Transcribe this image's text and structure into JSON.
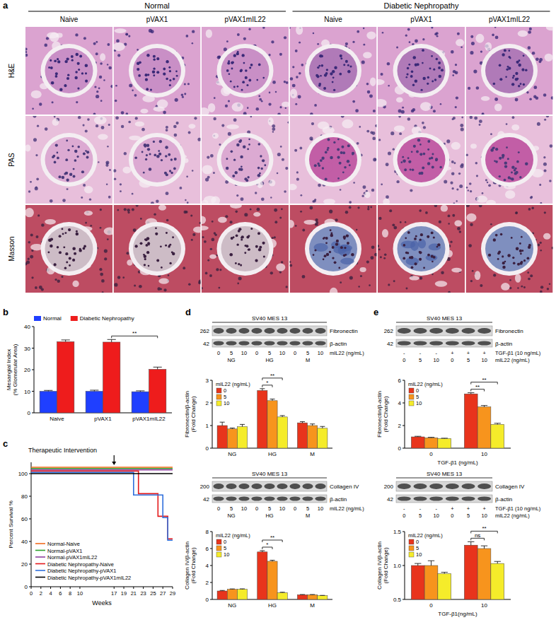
{
  "panel_labels": [
    "a",
    "b",
    "c",
    "d",
    "e"
  ],
  "panel_a": {
    "group_headers": [
      "Normal",
      "Diabetic Nephropathy"
    ],
    "columns": [
      "Naive",
      "pVAX1",
      "pVAX1mIL22",
      "Naive",
      "pVAX1",
      "pVAX1mIL22"
    ],
    "rows": [
      "H&E",
      "PAS",
      "Masson"
    ]
  },
  "blots": [
    {
      "title": "SV40 MES 13",
      "rows": [
        {
          "label": "Fibronectin",
          "mw": 262
        },
        {
          "label": "β-actin",
          "mw": 42
        }
      ],
      "lane_rows": [
        {
          "label": "mIL22 (ng/mL)",
          "lanes": [
            "0",
            "5",
            "10",
            "0",
            "5",
            "10",
            "0",
            "5",
            "10"
          ]
        }
      ],
      "groups": [
        "NG",
        "HG",
        "M"
      ]
    },
    {
      "title": "SV40 MES 13",
      "rows": [
        {
          "label": "Collagen IV",
          "mw": 200
        },
        {
          "label": "β-actin",
          "mw": 42
        }
      ],
      "lane_rows": [
        {
          "label": "mIL22 (ng/mL)",
          "lanes": [
            "0",
            "5",
            "10",
            "0",
            "5",
            "10",
            "0",
            "5",
            "10"
          ]
        }
      ],
      "groups": [
        "NG",
        "HG",
        "M"
      ]
    },
    {
      "title": "SV40 MES 13",
      "rows": [
        {
          "label": "Fibronectin",
          "mw": 262
        },
        {
          "label": "β-actin",
          "mw": 42
        }
      ],
      "lane_rows": [
        {
          "label": "TGF-β1 (10 ng/mL)",
          "lanes": [
            "-",
            "-",
            "-",
            "+",
            "+",
            "+"
          ]
        },
        {
          "label": "mIL22 (ng/mL)",
          "lanes": [
            "0",
            "5",
            "10",
            "0",
            "5",
            "10"
          ]
        }
      ]
    },
    {
      "title": "SV40 MES 13",
      "rows": [
        {
          "label": "Collagen IV",
          "mw": 200
        },
        {
          "label": "β-actin",
          "mw": 42
        }
      ],
      "lane_rows": [
        {
          "label": "TGF-β1 (10 ng/mL)",
          "lanes": [
            "-",
            "-",
            "-",
            "+",
            "+",
            "+"
          ]
        },
        {
          "label": "mIL22 (ng/mL)",
          "lanes": [
            "0",
            "5",
            "10",
            "0",
            "5",
            "10"
          ]
        }
      ]
    }
  ],
  "chart_data": [
    {
      "type": "bar",
      "categories": [
        "Naive",
        "pVAX1",
        "pVAX1mIL22"
      ],
      "series": [
        {
          "name": "Normal",
          "color": "#1f3fff",
          "values": [
            10,
            10,
            9.8
          ],
          "errors": [
            0.4,
            0.5,
            0.4
          ]
        },
        {
          "name": "Diabetic Nephropathy",
          "color": "#ee1c1c",
          "values": [
            33,
            32.8,
            20.2
          ],
          "errors": [
            0.8,
            1.2,
            1.0
          ]
        }
      ],
      "y_label": "Mesangial Index (% Glomerular Area)",
      "ylim": [
        0,
        40
      ],
      "yticks": [
        0,
        10,
        20,
        30,
        40
      ],
      "legend": "top",
      "annotations": [
        {
          "text": "**",
          "from": [
            1,
            1
          ],
          "to": [
            2,
            1
          ]
        }
      ]
    },
    {
      "type": "line",
      "line_style": "step",
      "x_label": "Weeks",
      "y_label": "Percent Survival %",
      "xlim": [
        0,
        29
      ],
      "xticks": [
        0,
        2,
        4,
        6,
        8,
        10,
        17,
        19,
        21,
        23,
        25,
        27,
        29
      ],
      "ylim": [
        0,
        110
      ],
      "yticks": [
        0,
        20,
        40,
        60,
        80,
        100
      ],
      "legend": "bottom-left",
      "annotation": {
        "text": "Therapeutic Intervention",
        "x": 17
      },
      "series": [
        {
          "name": "Normal-Naive",
          "color": "#f26b1d",
          "x": [
            0,
            29
          ],
          "values": [
            100,
            100
          ]
        },
        {
          "name": "Normal-pVAX1",
          "color": "#2ca02c",
          "x": [
            0,
            29
          ],
          "values": [
            100,
            100
          ]
        },
        {
          "name": "Normal-pVAX1mIL22",
          "color": "#8e3fa0",
          "x": [
            0,
            29
          ],
          "values": [
            100,
            100
          ]
        },
        {
          "name": "Diabetic Nephropathy-Naive",
          "color": "#e41a1c",
          "x": [
            0,
            22,
            26,
            28,
            29
          ],
          "values": [
            100,
            80,
            60,
            40,
            40
          ]
        },
        {
          "name": "Diabetic Nephropathy-pVAX1",
          "color": "#2f6fdc",
          "x": [
            0,
            21,
            27,
            28,
            29
          ],
          "values": [
            100,
            80,
            60,
            40,
            40
          ]
        },
        {
          "name": "Diabetic Nephropathy-pVAX1mIL22",
          "color": "#000000",
          "x": [
            0,
            29
          ],
          "values": [
            100,
            100
          ]
        }
      ]
    },
    {
      "type": "bar",
      "categories": [
        "NG",
        "HG",
        "M"
      ],
      "legend_title": "mIL22 (ng/mL)",
      "legend": "top-left",
      "y_label": "Fibronectin/β-actin (Fold Change)",
      "ylim": [
        0,
        3
      ],
      "yticks": [
        0,
        1,
        2,
        3
      ],
      "series": [
        {
          "name": "0",
          "color": "#e8341c",
          "values": [
            1.0,
            2.55,
            1.12
          ],
          "errors": [
            0.15,
            0.08,
            0.05
          ]
        },
        {
          "name": "5",
          "color": "#f7941d",
          "values": [
            0.85,
            2.1,
            1.0
          ],
          "errors": [
            0.04,
            0.07,
            0.07
          ]
        },
        {
          "name": "10",
          "color": "#f5ec2a",
          "values": [
            0.95,
            1.38,
            0.88
          ],
          "errors": [
            0.1,
            0.06,
            0.08
          ]
        }
      ],
      "annotations": [
        {
          "text": "*",
          "from": [
            1,
            0
          ],
          "to": [
            1,
            1
          ]
        },
        {
          "text": "**",
          "from": [
            1,
            0
          ],
          "to": [
            1,
            2
          ]
        }
      ]
    },
    {
      "type": "bar",
      "categories": [
        "NG",
        "HG",
        "M"
      ],
      "legend_title": "mIL22 (ng/mL)",
      "legend": "top-left",
      "y_label": "Collagen IV/β-actin (Fold Change)",
      "ylim": [
        0,
        8
      ],
      "yticks": [
        0,
        2,
        4,
        6,
        8
      ],
      "series": [
        {
          "name": "0",
          "color": "#e8341c",
          "values": [
            1.0,
            5.6,
            0.55
          ],
          "errors": [
            0.06,
            0.15,
            0.03
          ]
        },
        {
          "name": "5",
          "color": "#f7941d",
          "values": [
            1.2,
            4.5,
            0.55
          ],
          "errors": [
            0.04,
            0.12,
            0.03
          ]
        },
        {
          "name": "10",
          "color": "#f5ec2a",
          "values": [
            1.2,
            0.8,
            0.45
          ],
          "errors": [
            0.05,
            0.05,
            0.03
          ]
        }
      ],
      "annotations": [
        {
          "text": "*",
          "from": [
            1,
            0
          ],
          "to": [
            1,
            1
          ]
        },
        {
          "text": "**",
          "from": [
            1,
            0
          ],
          "to": [
            1,
            2
          ]
        }
      ]
    },
    {
      "type": "bar",
      "categories": [
        "0",
        "10"
      ],
      "x_label": "TGF-β1 (ng/mL)",
      "legend_title": "mIL22 (ng/mL)",
      "legend": "top-left",
      "y_label": "Fibronectin/β-actin (Fold Change)",
      "ylim": [
        0,
        6
      ],
      "yticks": [
        0,
        2,
        4,
        6
      ],
      "series": [
        {
          "name": "0",
          "color": "#e8341c",
          "values": [
            1.0,
            4.8
          ],
          "errors": [
            0.05,
            0.1
          ]
        },
        {
          "name": "5",
          "color": "#f7941d",
          "values": [
            0.92,
            3.65
          ],
          "errors": [
            0.04,
            0.12
          ]
        },
        {
          "name": "10",
          "color": "#f5ec2a",
          "values": [
            0.85,
            2.1
          ],
          "errors": [
            0.03,
            0.1
          ]
        }
      ],
      "annotations": [
        {
          "text": "**",
          "from": [
            1,
            0
          ],
          "to": [
            1,
            1
          ]
        },
        {
          "text": "**",
          "from": [
            1,
            0
          ],
          "to": [
            1,
            2
          ]
        }
      ]
    },
    {
      "type": "bar",
      "categories": [
        "0",
        "10"
      ],
      "x_label": "TGF-β1(ng/mL)",
      "legend_title": "mIL22 (ng/mL)",
      "legend": "top-left",
      "y_label": "Collagen IV/β-actin (Fold Change)",
      "ylim": [
        0.5,
        1.5
      ],
      "yticks": [
        0.5,
        {
          "value": 1,
          "label": "1.0"
        },
        1.5
      ],
      "series": [
        {
          "name": "0",
          "color": "#e8341c",
          "values": [
            1.0,
            1.3
          ],
          "errors": [
            0.03,
            0.05
          ]
        },
        {
          "name": "5",
          "color": "#f7941d",
          "values": [
            1.0,
            1.25
          ],
          "errors": [
            0.07,
            0.04
          ]
        },
        {
          "name": "10",
          "color": "#f5ec2a",
          "values": [
            0.88,
            1.03
          ],
          "errors": [
            0.02,
            0.03
          ]
        }
      ],
      "annotations": [
        {
          "text": "ns",
          "from": [
            1,
            0
          ],
          "to": [
            1,
            1
          ]
        },
        {
          "text": "**",
          "from": [
            1,
            0
          ],
          "to": [
            1,
            2
          ]
        }
      ]
    }
  ]
}
